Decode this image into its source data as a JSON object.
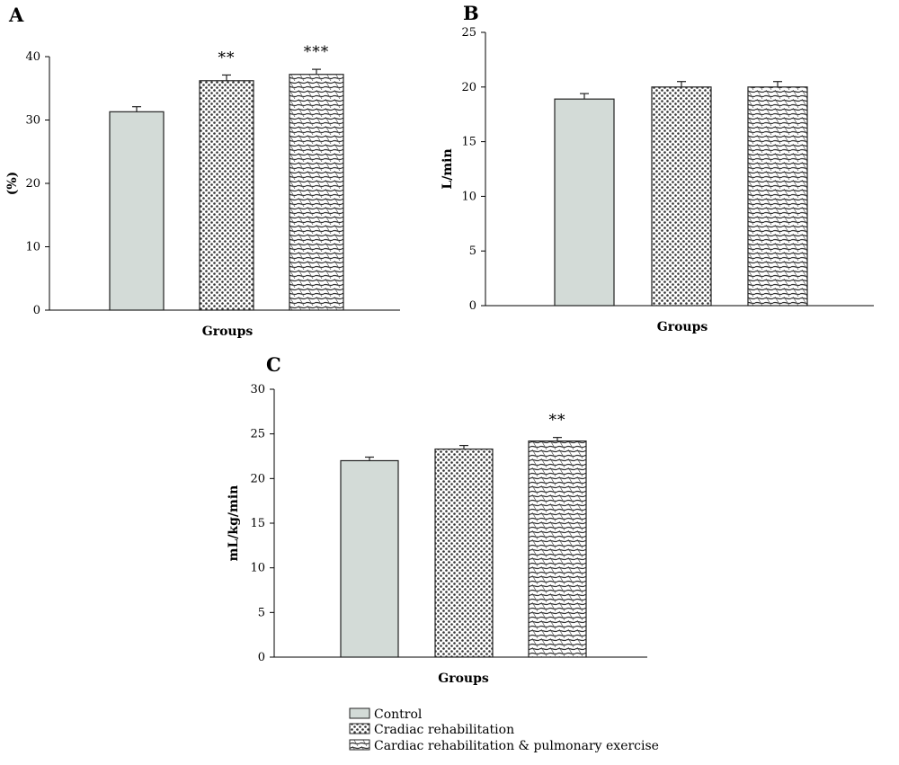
{
  "series_styles": [
    {
      "name": "Control",
      "fill": "#d3dbd7",
      "pattern": "solid"
    },
    {
      "name": "Cradiac rehabilitation",
      "fill": "#ffffff",
      "pattern": "dots"
    },
    {
      "name": "Cardiac rehabilitation & pulmonary exercise",
      "fill": "#ffffff",
      "pattern": "waves"
    }
  ],
  "legend": {
    "items": [
      "Control",
      "Cradiac rehabilitation",
      "Cardiac rehabilitation & pulmonary exercise"
    ],
    "placement": "bottom-center"
  },
  "chart_data": [
    {
      "panel": "A",
      "type": "bar",
      "categories": [
        "Control",
        "Cradiac rehabilitation",
        "Cardiac rehabilitation & pulmonary exercise"
      ],
      "values": [
        31.3,
        36.2,
        37.2
      ],
      "errors": [
        0.8,
        0.9,
        0.8
      ],
      "significance": [
        "",
        "**",
        "***"
      ],
      "xlabel": "Groups",
      "ylabel": "(%)",
      "ylim": [
        0,
        40
      ],
      "yticks": [
        0,
        10,
        20,
        30,
        40
      ],
      "grid": false
    },
    {
      "panel": "B",
      "type": "bar",
      "categories": [
        "Control",
        "Cradiac rehabilitation",
        "Cardiac rehabilitation & pulmonary exercise"
      ],
      "values": [
        18.9,
        20.0,
        20.0
      ],
      "errors": [
        0.5,
        0.5,
        0.5
      ],
      "significance": [
        "",
        "",
        ""
      ],
      "xlabel": "Groups",
      "ylabel": "L/min",
      "ylim": [
        0,
        25
      ],
      "yticks": [
        0,
        5,
        10,
        15,
        20,
        25
      ],
      "grid": false
    },
    {
      "panel": "C",
      "type": "bar",
      "categories": [
        "Control",
        "Cradiac rehabilitation",
        "Cardiac rehabilitation & pulmonary exercise"
      ],
      "values": [
        22.0,
        23.3,
        24.2
      ],
      "errors": [
        0.4,
        0.4,
        0.4
      ],
      "significance": [
        "",
        "",
        "**"
      ],
      "xlabel": "Groups",
      "ylabel": "mL/kg/min",
      "ylim": [
        0,
        30
      ],
      "yticks": [
        0,
        5,
        10,
        15,
        20,
        25,
        30
      ],
      "grid": false
    }
  ]
}
